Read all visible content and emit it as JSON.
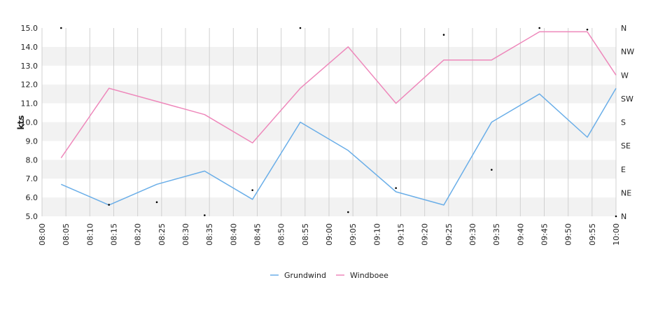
{
  "chart_data": {
    "type": "line",
    "ylabel": "kts",
    "ylim": [
      5,
      15
    ],
    "y_ticks": [
      "5.0",
      "6.0",
      "7.0",
      "8.0",
      "9.0",
      "10.0",
      "11.0",
      "12.0",
      "13.0",
      "14.0",
      "15.0"
    ],
    "x_range": [
      "08:00",
      "10:00"
    ],
    "x_ticks": [
      "08:00",
      "08:05",
      "08:10",
      "08:15",
      "08:20",
      "08:25",
      "08:30",
      "08:35",
      "08:40",
      "08:45",
      "08:50",
      "08:55",
      "09:00",
      "09:05",
      "09:10",
      "09:15",
      "09:20",
      "09:25",
      "09:30",
      "09:35",
      "09:40",
      "09:45",
      "09:50",
      "09:55",
      "10:00"
    ],
    "right_axis": {
      "ticks": [
        "N",
        "NE",
        "E",
        "SE",
        "S",
        "SW",
        "W",
        "NW",
        "N"
      ],
      "range": [
        0,
        360
      ]
    },
    "grid": true,
    "legend_position": "bottom",
    "series": [
      {
        "name": "Grundwind",
        "color": "#6aaee8",
        "x": [
          "08:04",
          "08:14",
          "08:24",
          "08:34",
          "08:44",
          "08:54",
          "09:04",
          "09:14",
          "09:24",
          "09:34",
          "09:44",
          "09:54",
          "10:00"
        ],
        "values": [
          6.7,
          5.6,
          6.7,
          7.4,
          5.9,
          10.0,
          8.5,
          6.3,
          5.6,
          10.0,
          11.5,
          9.2,
          11.8
        ]
      },
      {
        "name": "Windboee",
        "color": "#ee88bb",
        "x": [
          "08:04",
          "08:14",
          "08:24",
          "08:34",
          "08:44",
          "08:54",
          "09:04",
          "09:14",
          "09:24",
          "09:34",
          "09:44",
          "09:54",
          "10:00"
        ],
        "values": [
          8.1,
          11.8,
          11.1,
          10.4,
          8.9,
          11.8,
          14.0,
          11.0,
          13.3,
          13.3,
          14.8,
          14.8,
          12.5
        ]
      }
    ],
    "direction_points": {
      "name": "direction",
      "color": "#000000",
      "x": [
        "08:04",
        "08:14",
        "08:24",
        "08:34",
        "08:44",
        "08:54",
        "09:04",
        "09:14",
        "09:24",
        "09:34",
        "09:44",
        "09:54",
        "10:00"
      ],
      "values": [
        360,
        22,
        27,
        2,
        50,
        360,
        8,
        54,
        347,
        89,
        360,
        357,
        0
      ]
    }
  }
}
